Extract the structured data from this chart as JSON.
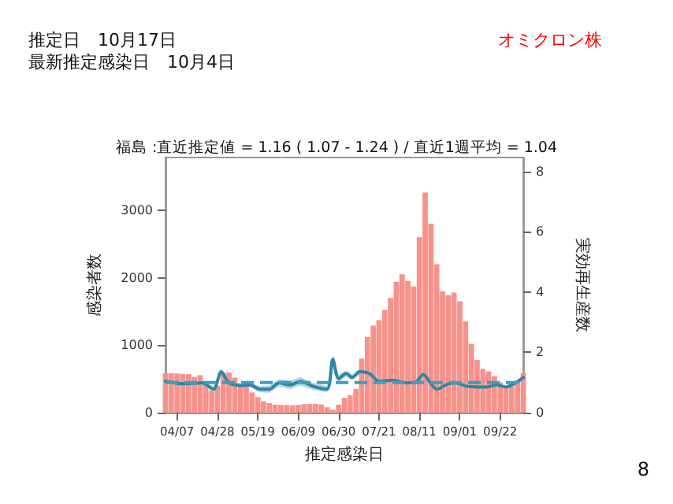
{
  "chart_data": {
    "type": "bar",
    "title": "福島 :直近推定値 = 1.16 ( 1.07 - 1.24 ) / 直近1週平均 = 1.04",
    "xlabel": "推定感染日",
    "ylabel": "感染者数",
    "y2label": "実効再生産数",
    "annotations": [
      "推定日　10月17日",
      "最新推定感染日　10月4日",
      "オミクロン株",
      "8"
    ],
    "xlim": [
      "--04-01",
      "--10-04"
    ],
    "xticks": [
      {
        "value": "--04-07",
        "label": "04/07"
      },
      {
        "value": "--04-28",
        "label": "04/28"
      },
      {
        "value": "--05-19",
        "label": "05/19"
      },
      {
        "value": "--06-09",
        "label": "06/09"
      },
      {
        "value": "--06-30",
        "label": "06/30"
      },
      {
        "value": "--07-21",
        "label": "07/21"
      },
      {
        "value": "--08-11",
        "label": "08/11"
      },
      {
        "value": "--09-01",
        "label": "09/01"
      },
      {
        "value": "--09-22",
        "label": "09/22"
      }
    ],
    "ylim": [
      0,
      3780
    ],
    "yticks": [
      0,
      1000,
      2000,
      3000
    ],
    "y2lim": [
      0,
      8.47
    ],
    "y2ticks": [
      0,
      2,
      4,
      6,
      8
    ],
    "series": [
      {
        "color": "#f7928a",
        "x": [
          "--04-01",
          "--04-04",
          "--04-07",
          "--04-10",
          "--04-13",
          "--04-16",
          "--04-19",
          "--04-22",
          "--04-25",
          "--04-28",
          "--05-01",
          "--05-04",
          "--05-07",
          "--05-10",
          "--05-13",
          "--05-16",
          "--05-19",
          "--05-22",
          "--05-25",
          "--05-28",
          "--05-31",
          "--06-03",
          "--06-06",
          "--06-09",
          "--06-12",
          "--06-15",
          "--06-18",
          "--06-21",
          "--06-24",
          "--06-27",
          "--06-30",
          "--07-03",
          "--07-06",
          "--07-09",
          "--07-12",
          "--07-15",
          "--07-18",
          "--07-21",
          "--07-24",
          "--07-27",
          "--07-30",
          "--08-02",
          "--08-05",
          "--08-08",
          "--08-11",
          "--08-14",
          "--08-17",
          "--08-20",
          "--08-23",
          "--08-26",
          "--08-29",
          "--09-01",
          "--09-04",
          "--09-07",
          "--09-10",
          "--09-13",
          "--09-16",
          "--09-19",
          "--09-22",
          "--09-25",
          "--09-28",
          "--10-01",
          "--10-04"
        ],
        "values": [
          585,
          585,
          580,
          575,
          570,
          530,
          555,
          470,
          330,
          400,
          590,
          595,
          520,
          430,
          380,
          300,
          230,
          170,
          140,
          120,
          115,
          115,
          110,
          115,
          125,
          130,
          130,
          120,
          80,
          45,
          120,
          220,
          260,
          350,
          800,
          1120,
          1290,
          1370,
          1520,
          1700,
          1940,
          2050,
          1950,
          1870,
          2600,
          3260,
          2800,
          2200,
          1800,
          1740,
          1780,
          1650,
          1350,
          1020,
          780,
          650,
          610,
          540,
          450,
          360,
          390,
          480,
          590
        ]
      },
      {
        "type": "line",
        "axis": "y2",
        "color": "#2e86a8",
        "line_style": "solid",
        "marker": "none",
        "x": [
          "--04-01",
          "--04-10",
          "--04-20",
          "--04-26",
          "--04-30",
          "--05-04",
          "--05-10",
          "--05-15",
          "--05-20",
          "--05-25",
          "--05-30",
          "--06-05",
          "--06-10",
          "--06-17",
          "--06-24",
          "--06-27",
          "--06-30",
          "--07-04",
          "--07-07",
          "--07-11",
          "--07-16",
          "--07-21",
          "--07-28",
          "--08-04",
          "--08-09",
          "--08-13",
          "--08-17",
          "--08-20",
          "--08-26",
          "--08-30",
          "--09-05",
          "--09-15",
          "--09-20",
          "--09-25",
          "--09-30",
          "--10-04"
        ],
        "values": [
          1.04,
          0.96,
          0.99,
          0.78,
          1.36,
          0.99,
          0.9,
          0.92,
          0.78,
          0.78,
          0.99,
          0.92,
          1.04,
          0.87,
          0.78,
          1.77,
          1.13,
          1.3,
          1.17,
          1.36,
          1.3,
          1.04,
          1.08,
          0.99,
          1.01,
          1.27,
          0.96,
          0.78,
          0.96,
          0.99,
          0.87,
          0.85,
          0.92,
          0.85,
          0.99,
          1.17
        ],
        "lower": [
          0.97,
          0.9,
          0.93,
          0.7,
          1.26,
          0.91,
          0.83,
          0.84,
          0.68,
          0.66,
          0.86,
          0.78,
          0.9,
          0.75,
          0.68,
          1.6,
          1.0,
          1.2,
          1.08,
          1.27,
          1.22,
          0.98,
          1.02,
          0.94,
          0.96,
          1.2,
          0.9,
          0.72,
          0.9,
          0.94,
          0.82,
          0.8,
          0.87,
          0.8,
          0.93,
          1.08
        ],
        "upper": [
          1.11,
          1.02,
          1.05,
          0.86,
          1.46,
          1.07,
          0.97,
          1.0,
          0.88,
          0.9,
          1.12,
          1.06,
          1.18,
          0.99,
          0.88,
          1.94,
          1.26,
          1.4,
          1.26,
          1.45,
          1.38,
          1.1,
          1.14,
          1.04,
          1.06,
          1.34,
          1.02,
          0.84,
          1.02,
          1.04,
          0.92,
          0.9,
          0.97,
          0.9,
          1.05,
          1.26
        ]
      }
    ],
    "ref_lines": [
      {
        "axis": "y2",
        "value": 1,
        "color": "#3a9fc0",
        "line_style": "dashed"
      }
    ],
    "grid": false
  }
}
